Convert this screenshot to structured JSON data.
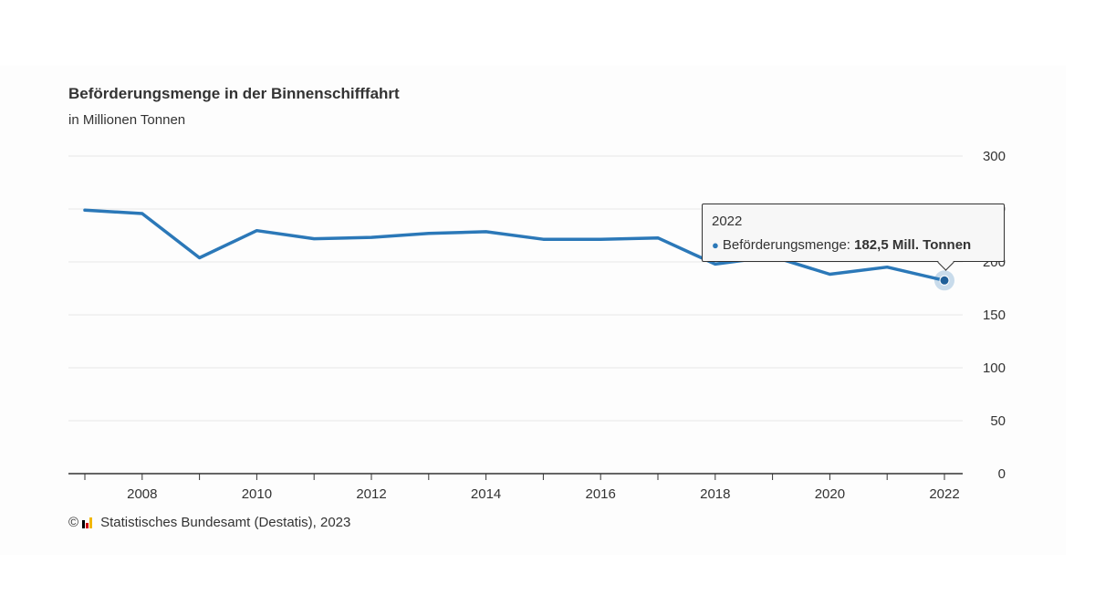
{
  "header": {
    "title": "Beförderungsmenge in der Binnenschifffahrt",
    "subtitle": "in Millionen Tonnen"
  },
  "footer": {
    "copyright": "©",
    "source": "Statistisches Bundesamt (Destatis), 2023"
  },
  "tooltip": {
    "year": "2022",
    "series_label": "Beförderungsmenge:",
    "value_label": "182,5 Mill. Tonnen"
  },
  "colors": {
    "line": "#2b78b8",
    "grid": "#e6e6e6",
    "axis": "#333333",
    "text": "#333333"
  },
  "chart_data": {
    "type": "line",
    "title": "Beförderungsmenge in der Binnenschifffahrt",
    "subtitle": "in Millionen Tonnen",
    "xlabel": "",
    "ylabel": "",
    "x": [
      2007,
      2008,
      2009,
      2010,
      2011,
      2012,
      2013,
      2014,
      2015,
      2016,
      2017,
      2018,
      2019,
      2020,
      2021,
      2022
    ],
    "series": [
      {
        "values": [
          248.9,
          245.7,
          203.9,
          229.6,
          221.9,
          223.2,
          226.9,
          228.5,
          221.4,
          221.3,
          222.7,
          197.9,
          205.1,
          188.4,
          195.1,
          182.5
        ]
      }
    ],
    "ylim": [
      0,
      300
    ],
    "yticks": [
      0,
      50,
      100,
      150,
      200,
      250,
      300
    ],
    "xtick_labels": [
      "2008",
      "2010",
      "2012",
      "2014",
      "2016",
      "2018",
      "2020",
      "2022"
    ],
    "y_axis_position": "right",
    "grid": true,
    "legend": "none",
    "highlighted_point": {
      "x": 2022,
      "y": 182.5
    }
  }
}
